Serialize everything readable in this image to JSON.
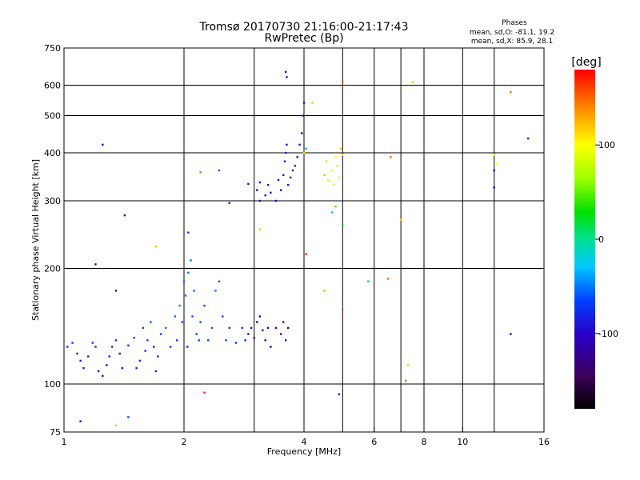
{
  "chart_data": {
    "type": "scatter",
    "title": "Tromsø 20170730 21:16:00-21:17:43",
    "subtitle": "RwPretec (Bp)",
    "phases_title": "Phases",
    "phases_o": "mean, sd,O: -81.1, 19.2",
    "phases_x": "mean, sd,X: 85.9, 28.1",
    "xlabel": "Frequency [MHz]",
    "ylabel": "Stationary phase Virtual Height [km]",
    "xscale": "log2",
    "yscale": "log",
    "xlim": [
      1,
      16
    ],
    "ylim": [
      75,
      750
    ],
    "grid": true,
    "x_ticks": [
      {
        "value": 1,
        "label": "1"
      },
      {
        "value": 2,
        "label": "2"
      },
      {
        "value": 4,
        "label": "4"
      },
      {
        "value": 6,
        "label": "6"
      },
      {
        "value": 8,
        "label": "8"
      },
      {
        "value": 10,
        "label": "10"
      },
      {
        "value": 16,
        "label": "16"
      }
    ],
    "y_ticks": [
      {
        "value": 75,
        "label": "75"
      },
      {
        "value": 100,
        "label": "100"
      },
      {
        "value": 200,
        "label": "200"
      },
      {
        "value": 300,
        "label": "300"
      },
      {
        "value": 400,
        "label": "400"
      },
      {
        "value": 500,
        "label": "500"
      },
      {
        "value": 600,
        "label": "600"
      },
      {
        "value": 750,
        "label": "750"
      }
    ],
    "colorbar": {
      "label": "[deg]",
      "range": [
        -180,
        180
      ],
      "ticks": [
        {
          "value": 100,
          "label": "100"
        },
        {
          "value": 0,
          "label": "0"
        },
        {
          "value": -100,
          "label": "-100"
        }
      ]
    },
    "points": [
      {
        "x": 1.02,
        "y": 125,
        "p": -75
      },
      {
        "x": 1.05,
        "y": 128,
        "p": -70
      },
      {
        "x": 1.08,
        "y": 120,
        "p": -80
      },
      {
        "x": 1.1,
        "y": 115,
        "p": -85
      },
      {
        "x": 1.12,
        "y": 110,
        "p": -90
      },
      {
        "x": 1.15,
        "y": 118,
        "p": -80
      },
      {
        "x": 1.18,
        "y": 128,
        "p": -65
      },
      {
        "x": 1.2,
        "y": 125,
        "p": -70
      },
      {
        "x": 1.22,
        "y": 108,
        "p": -95
      },
      {
        "x": 1.25,
        "y": 105,
        "p": -95
      },
      {
        "x": 1.28,
        "y": 112,
        "p": -90
      },
      {
        "x": 1.3,
        "y": 118,
        "p": -85
      },
      {
        "x": 1.32,
        "y": 125,
        "p": -75
      },
      {
        "x": 1.35,
        "y": 130,
        "p": -80
      },
      {
        "x": 1.38,
        "y": 120,
        "p": -90
      },
      {
        "x": 1.4,
        "y": 110,
        "p": -95
      },
      {
        "x": 1.45,
        "y": 126,
        "p": -75
      },
      {
        "x": 1.5,
        "y": 132,
        "p": -70
      },
      {
        "x": 1.52,
        "y": 110,
        "p": -80
      },
      {
        "x": 1.55,
        "y": 115,
        "p": -85
      },
      {
        "x": 1.58,
        "y": 140,
        "p": -70
      },
      {
        "x": 1.6,
        "y": 122,
        "p": -75
      },
      {
        "x": 1.62,
        "y": 130,
        "p": -65
      },
      {
        "x": 1.65,
        "y": 145,
        "p": -60
      },
      {
        "x": 1.68,
        "y": 125,
        "p": -80
      },
      {
        "x": 1.7,
        "y": 108,
        "p": -75
      },
      {
        "x": 1.72,
        "y": 118,
        "p": -85
      },
      {
        "x": 1.75,
        "y": 135,
        "p": -70
      },
      {
        "x": 1.8,
        "y": 140,
        "p": -50
      },
      {
        "x": 1.85,
        "y": 125,
        "p": -65
      },
      {
        "x": 1.9,
        "y": 150,
        "p": -55
      },
      {
        "x": 1.92,
        "y": 130,
        "p": -70
      },
      {
        "x": 1.95,
        "y": 160,
        "p": -50
      },
      {
        "x": 1.98,
        "y": 145,
        "p": -65
      },
      {
        "x": 2.0,
        "y": 185,
        "p": -55
      },
      {
        "x": 2.02,
        "y": 170,
        "p": -50
      },
      {
        "x": 2.04,
        "y": 125,
        "p": -80
      },
      {
        "x": 2.05,
        "y": 195,
        "p": -55
      },
      {
        "x": 2.08,
        "y": 210,
        "p": -50
      },
      {
        "x": 2.1,
        "y": 150,
        "p": -60
      },
      {
        "x": 2.12,
        "y": 175,
        "p": -55
      },
      {
        "x": 2.15,
        "y": 135,
        "p": -65
      },
      {
        "x": 2.18,
        "y": 130,
        "p": -65
      },
      {
        "x": 2.2,
        "y": 145,
        "p": -60
      },
      {
        "x": 2.25,
        "y": 160,
        "p": -70
      },
      {
        "x": 2.3,
        "y": 130,
        "p": -65
      },
      {
        "x": 2.35,
        "y": 140,
        "p": -60
      },
      {
        "x": 2.4,
        "y": 175,
        "p": -55
      },
      {
        "x": 2.45,
        "y": 185,
        "p": -60
      },
      {
        "x": 2.5,
        "y": 150,
        "p": -65
      },
      {
        "x": 2.55,
        "y": 130,
        "p": -70
      },
      {
        "x": 2.6,
        "y": 140,
        "p": -75
      },
      {
        "x": 2.7,
        "y": 128,
        "p": -70
      },
      {
        "x": 2.8,
        "y": 140,
        "p": -75
      },
      {
        "x": 2.85,
        "y": 130,
        "p": -80
      },
      {
        "x": 2.9,
        "y": 135,
        "p": -110
      },
      {
        "x": 2.95,
        "y": 140,
        "p": -115
      },
      {
        "x": 3.0,
        "y": 132,
        "p": -120
      },
      {
        "x": 3.05,
        "y": 145,
        "p": -110
      },
      {
        "x": 3.1,
        "y": 150,
        "p": -120
      },
      {
        "x": 3.15,
        "y": 138,
        "p": -125
      },
      {
        "x": 3.2,
        "y": 130,
        "p": -115
      },
      {
        "x": 3.25,
        "y": 140,
        "p": -120
      },
      {
        "x": 3.3,
        "y": 125,
        "p": -125
      },
      {
        "x": 3.4,
        "y": 140,
        "p": -115
      },
      {
        "x": 3.5,
        "y": 135,
        "p": -120
      },
      {
        "x": 3.55,
        "y": 145,
        "p": -100
      },
      {
        "x": 3.6,
        "y": 130,
        "p": -110
      },
      {
        "x": 3.65,
        "y": 140,
        "p": -115
      },
      {
        "x": 3.05,
        "y": 320,
        "p": -100
      },
      {
        "x": 3.1,
        "y": 300,
        "p": -105
      },
      {
        "x": 3.2,
        "y": 310,
        "p": -100
      },
      {
        "x": 3.25,
        "y": 330,
        "p": -95
      },
      {
        "x": 3.3,
        "y": 315,
        "p": -100
      },
      {
        "x": 3.4,
        "y": 300,
        "p": -100
      },
      {
        "x": 3.45,
        "y": 340,
        "p": -95
      },
      {
        "x": 3.5,
        "y": 320,
        "p": -100
      },
      {
        "x": 3.55,
        "y": 350,
        "p": -90
      },
      {
        "x": 3.58,
        "y": 380,
        "p": -90
      },
      {
        "x": 3.6,
        "y": 400,
        "p": -95
      },
      {
        "x": 3.62,
        "y": 420,
        "p": -95
      },
      {
        "x": 3.65,
        "y": 330,
        "p": -95
      },
      {
        "x": 3.7,
        "y": 345,
        "p": -90
      },
      {
        "x": 3.75,
        "y": 360,
        "p": -90
      },
      {
        "x": 3.8,
        "y": 370,
        "p": -90
      },
      {
        "x": 3.85,
        "y": 390,
        "p": -100
      },
      {
        "x": 3.9,
        "y": 420,
        "p": -95
      },
      {
        "x": 3.95,
        "y": 450,
        "p": -100
      },
      {
        "x": 3.98,
        "y": 500,
        "p": -100
      },
      {
        "x": 4.0,
        "y": 540,
        "p": -100
      },
      {
        "x": 3.6,
        "y": 650,
        "p": -95
      },
      {
        "x": 3.62,
        "y": 630,
        "p": -95
      },
      {
        "x": 3.1,
        "y": 335,
        "p": -100
      },
      {
        "x": 4.5,
        "y": 350,
        "p": 60
      },
      {
        "x": 4.55,
        "y": 380,
        "p": 70
      },
      {
        "x": 4.6,
        "y": 340,
        "p": 80
      },
      {
        "x": 4.7,
        "y": 360,
        "p": 95
      },
      {
        "x": 4.75,
        "y": 330,
        "p": 85
      },
      {
        "x": 4.8,
        "y": 390,
        "p": 100
      },
      {
        "x": 4.85,
        "y": 370,
        "p": 110
      },
      {
        "x": 4.9,
        "y": 345,
        "p": 90
      },
      {
        "x": 4.95,
        "y": 410,
        "p": 120
      },
      {
        "x": 5.0,
        "y": 395,
        "p": 100
      },
      {
        "x": 4.7,
        "y": 280,
        "p": -30
      },
      {
        "x": 4.8,
        "y": 290,
        "p": 40
      },
      {
        "x": 5.0,
        "y": 260,
        "p": 20
      },
      {
        "x": 4.0,
        "y": 400,
        "p": 110
      },
      {
        "x": 4.05,
        "y": 410,
        "p": -40
      },
      {
        "x": 1.25,
        "y": 420,
        "p": -110
      },
      {
        "x": 1.42,
        "y": 275,
        "p": -100
      },
      {
        "x": 1.35,
        "y": 175,
        "p": -125
      },
      {
        "x": 1.2,
        "y": 205,
        "p": -110
      },
      {
        "x": 1.45,
        "y": 82,
        "p": -60
      },
      {
        "x": 1.35,
        "y": 78,
        "p": 120
      },
      {
        "x": 1.1,
        "y": 80,
        "p": -100
      },
      {
        "x": 1.7,
        "y": 228,
        "p": 120
      },
      {
        "x": 2.05,
        "y": 248,
        "p": -70
      },
      {
        "x": 2.2,
        "y": 356,
        "p": 150
      },
      {
        "x": 2.45,
        "y": 360,
        "p": -60
      },
      {
        "x": 2.25,
        "y": 95,
        "p": 170
      },
      {
        "x": 2.6,
        "y": 296,
        "p": -90
      },
      {
        "x": 2.9,
        "y": 332,
        "p": -105
      },
      {
        "x": 3.1,
        "y": 253,
        "p": 120
      },
      {
        "x": 4.05,
        "y": 218,
        "p": 170
      },
      {
        "x": 4.5,
        "y": 175,
        "p": 130
      },
      {
        "x": 4.9,
        "y": 94,
        "p": -110
      },
      {
        "x": 5.0,
        "y": 156,
        "p": 150
      },
      {
        "x": 5.0,
        "y": 612,
        "p": 150
      },
      {
        "x": 4.2,
        "y": 540,
        "p": 120
      },
      {
        "x": 5.8,
        "y": 185,
        "p": 20
      },
      {
        "x": 6.5,
        "y": 188,
        "p": 150
      },
      {
        "x": 6.6,
        "y": 390,
        "p": 150
      },
      {
        "x": 7.0,
        "y": 268,
        "p": 120
      },
      {
        "x": 7.3,
        "y": 112,
        "p": 120
      },
      {
        "x": 7.2,
        "y": 102,
        "p": 150
      },
      {
        "x": 7.5,
        "y": 612,
        "p": 120
      },
      {
        "x": 12,
        "y": 395,
        "p": 100
      },
      {
        "x": 12,
        "y": 360,
        "p": -110
      },
      {
        "x": 12,
        "y": 325,
        "p": -110
      },
      {
        "x": 12.2,
        "y": 375,
        "p": 100
      },
      {
        "x": 13.2,
        "y": 576,
        "p": 150
      },
      {
        "x": 13.2,
        "y": 135,
        "p": -120
      },
      {
        "x": 14.6,
        "y": 436,
        "p": -75
      }
    ]
  }
}
